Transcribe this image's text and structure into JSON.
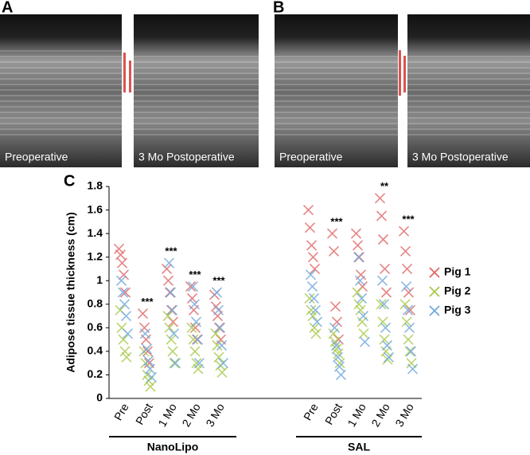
{
  "panels": [
    {
      "label": "A",
      "images": [
        {
          "caption": "Preoperative"
        },
        {
          "caption": "3 Mo Postoperative"
        }
      ]
    },
    {
      "label": "B",
      "images": [
        {
          "caption": "Preoperative"
        },
        {
          "caption": "3 Mo Postoperative"
        }
      ]
    }
  ],
  "chart_data": {
    "type": "scatter",
    "panel_label": "C",
    "marker": "x",
    "y_label": "Adipose tissue thickness (cm)",
    "ylim": [
      0,
      1.8
    ],
    "yticks": [
      0,
      0.2,
      0.4,
      0.6,
      0.8,
      1,
      1.2,
      1.4,
      1.6,
      1.8
    ],
    "groups": [
      {
        "name": "NanoLipo",
        "categories": [
          "Pre",
          "Post",
          "1 Mo",
          "2 Mo",
          "3 Mo"
        ],
        "significance": [
          null,
          "***",
          "***",
          "***",
          "***"
        ]
      },
      {
        "name": "SAL",
        "categories": [
          "Pre",
          "Post",
          "1 Mo",
          "2 Mo",
          "3 Mo"
        ],
        "significance": [
          null,
          "***",
          null,
          "**",
          "***"
        ]
      }
    ],
    "series": [
      {
        "name": "Pig 1",
        "color": "#e06666",
        "values": [
          [
            1.27,
            1.22,
            1.15,
            1.05,
            0.9
          ],
          [
            0.72,
            0.6,
            0.5,
            0.4,
            0.3
          ],
          [
            1.1,
            1.0,
            0.9,
            0.75,
            0.65
          ],
          [
            0.95,
            0.85,
            0.75,
            0.6,
            0.5
          ],
          [
            0.88,
            0.78,
            0.7,
            0.6,
            0.5
          ],
          [
            1.6,
            1.45,
            1.3,
            1.2,
            1.1
          ],
          [
            1.4,
            1.25,
            0.78,
            0.65,
            0.5
          ],
          [
            1.4,
            1.3,
            1.2,
            1.05,
            0.95
          ],
          [
            1.7,
            1.55,
            1.35,
            1.1,
            0.9
          ],
          [
            1.42,
            1.25,
            1.1,
            0.9,
            0.75
          ]
        ]
      },
      {
        "name": "Pig 2",
        "color": "#a8c94a",
        "values": [
          [
            0.75,
            0.6,
            0.5,
            0.4,
            0.35
          ],
          [
            0.4,
            0.3,
            0.2,
            0.15,
            0.1
          ],
          [
            0.7,
            0.6,
            0.5,
            0.4,
            0.3
          ],
          [
            0.6,
            0.5,
            0.4,
            0.3,
            0.25
          ],
          [
            0.55,
            0.45,
            0.35,
            0.28,
            0.22
          ],
          [
            0.85,
            0.75,
            0.7,
            0.6,
            0.55
          ],
          [
            0.55,
            0.48,
            0.42,
            0.38,
            0.3
          ],
          [
            0.9,
            0.8,
            0.75,
            0.65,
            0.55
          ],
          [
            0.8,
            0.65,
            0.5,
            0.4,
            0.33
          ],
          [
            0.8,
            0.65,
            0.5,
            0.4,
            0.3
          ]
        ]
      },
      {
        "name": "Pig 3",
        "color": "#6fa8dc",
        "values": [
          [
            1.0,
            0.9,
            0.8,
            0.7,
            0.55
          ],
          [
            0.55,
            0.42,
            0.32,
            0.25,
            0.18
          ],
          [
            1.15,
            0.9,
            0.75,
            0.55,
            0.3
          ],
          [
            0.95,
            0.8,
            0.65,
            0.5,
            0.3
          ],
          [
            0.9,
            0.75,
            0.6,
            0.45,
            0.3
          ],
          [
            1.05,
            0.95,
            0.85,
            0.75,
            0.65
          ],
          [
            0.6,
            0.45,
            0.35,
            0.27,
            0.2
          ],
          [
            1.2,
            1.0,
            0.85,
            0.7,
            0.48
          ],
          [
            1.0,
            0.8,
            0.6,
            0.45,
            0.35
          ],
          [
            0.95,
            0.75,
            0.6,
            0.4,
            0.25
          ]
        ]
      }
    ]
  }
}
